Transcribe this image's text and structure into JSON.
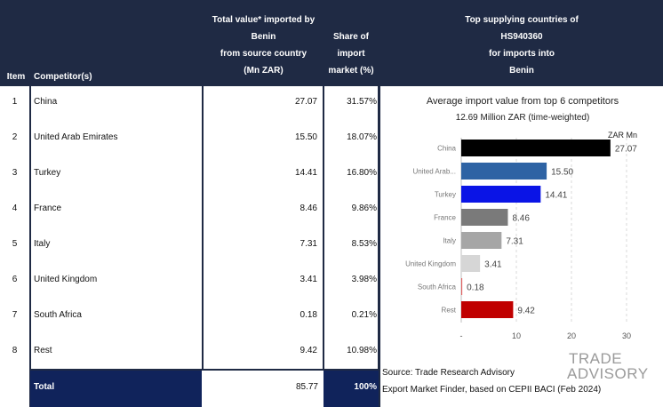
{
  "header": {
    "item": "Item",
    "competitor": "Competitor(s)",
    "value_lines": [
      "Total value* imported by",
      "Benin",
      "from source country",
      "(Mn ZAR)"
    ],
    "share_lines": [
      "Share of",
      "import",
      "market (%)"
    ],
    "chart_title_lines": [
      "Top supplying countries of",
      "HS940360",
      "for imports into",
      "Benin"
    ]
  },
  "rows": [
    {
      "item": "1",
      "name": "China",
      "value": "27.07",
      "share": "31.57%"
    },
    {
      "item": "2",
      "name": "United Arab Emirates",
      "value": "15.50",
      "share": "18.07%"
    },
    {
      "item": "3",
      "name": "Turkey",
      "value": "14.41",
      "share": "16.80%"
    },
    {
      "item": "4",
      "name": "France",
      "value": "8.46",
      "share": "9.86%"
    },
    {
      "item": "5",
      "name": "Italy",
      "value": "7.31",
      "share": "8.53%"
    },
    {
      "item": "6",
      "name": "United Kingdom",
      "value": "3.41",
      "share": "3.98%"
    },
    {
      "item": "7",
      "name": "South Africa",
      "value": "0.18",
      "share": "0.21%"
    },
    {
      "item": "8",
      "name": "Rest",
      "value": "9.42",
      "share": "10.98%"
    }
  ],
  "total": {
    "label": "Total",
    "value": "85.77",
    "share": "100%"
  },
  "source": {
    "line1": "Source: Trade Research Advisory",
    "line2": "Export Market Finder, based on CEPII BACI (Feb 2024)"
  },
  "logo": {
    "line1": "TRADE",
    "line2": "ADVISORY"
  },
  "colors": {
    "header_bg": "#1f2a44",
    "total_bg": "#10235b"
  },
  "chart_data": {
    "type": "bar",
    "orientation": "horizontal",
    "title": "Average import value from top 6 competitors",
    "subtitle": "12.69 Million ZAR (time-weighted)",
    "unit_label": "ZAR Mn",
    "categories": [
      "China",
      "United Arab...",
      "Turkey",
      "France",
      "Italy",
      "United Kingdom",
      "South Africa",
      "Rest"
    ],
    "values": [
      27.07,
      15.5,
      14.41,
      8.46,
      7.31,
      3.41,
      0.18,
      9.42
    ],
    "value_labels": [
      "27.07",
      "15.50",
      "14.41",
      "8.46",
      "7.31",
      "3.41",
      "0.18",
      "9.42"
    ],
    "colors": [
      "#000000",
      "#2e63a4",
      "#0a14e6",
      "#7a7a7a",
      "#a6a6a6",
      "#d6d6d6",
      "#e06060",
      "#c00000"
    ],
    "xticks": [
      "-",
      "10",
      "20",
      "30"
    ],
    "xlim": [
      0,
      30
    ],
    "grid": true
  }
}
